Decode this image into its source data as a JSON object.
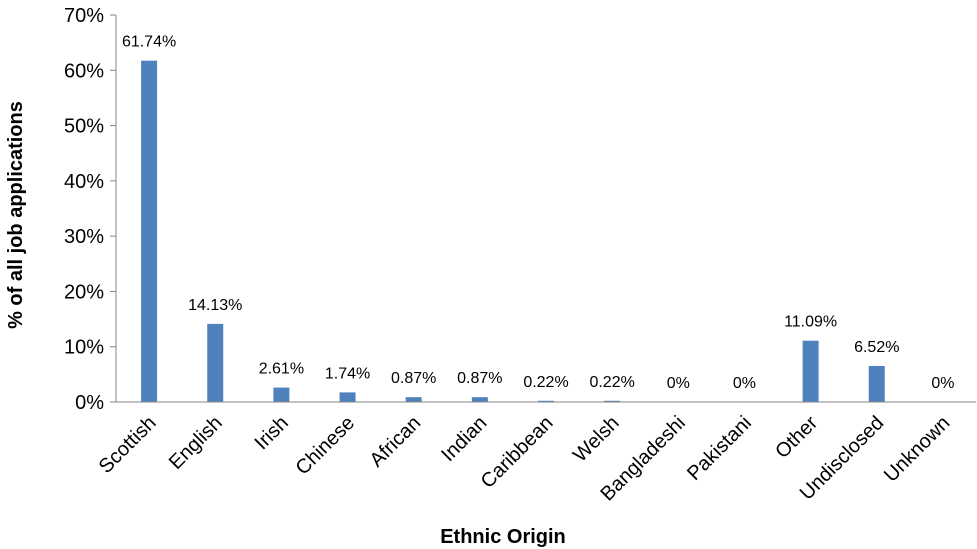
{
  "chart_data": {
    "type": "bar",
    "title": "",
    "xlabel": "Ethnic Origin",
    "ylabel": "% of all job applications",
    "categories": [
      "Scottish",
      "English",
      "Irish",
      "Chinese",
      "African",
      "Indian",
      "Caribbean",
      "Welsh",
      "Bangladeshi",
      "Pakistani",
      "Other",
      "Undisclosed",
      "Unknown"
    ],
    "values": [
      61.74,
      14.13,
      2.61,
      1.74,
      0.87,
      0.87,
      0.22,
      0.22,
      0,
      0,
      11.09,
      6.52,
      0
    ],
    "data_labels": [
      "61.74%",
      "14.13%",
      "2.61%",
      "1.74%",
      "0.87%",
      "0.87%",
      "0.22%",
      "0.22%",
      "0%",
      "0%",
      "11.09%",
      "6.52%",
      "0%"
    ],
    "ylim": [
      0,
      70
    ],
    "yticks": [
      0,
      10,
      20,
      30,
      40,
      50,
      60,
      70
    ],
    "ytick_labels": [
      "0%",
      "10%",
      "20%",
      "30%",
      "40%",
      "50%",
      "60%",
      "70%"
    ],
    "grid": false,
    "legend": "none",
    "colors": {
      "bar": "#4F81BD",
      "axis": "#868686",
      "text": "#000000"
    }
  }
}
